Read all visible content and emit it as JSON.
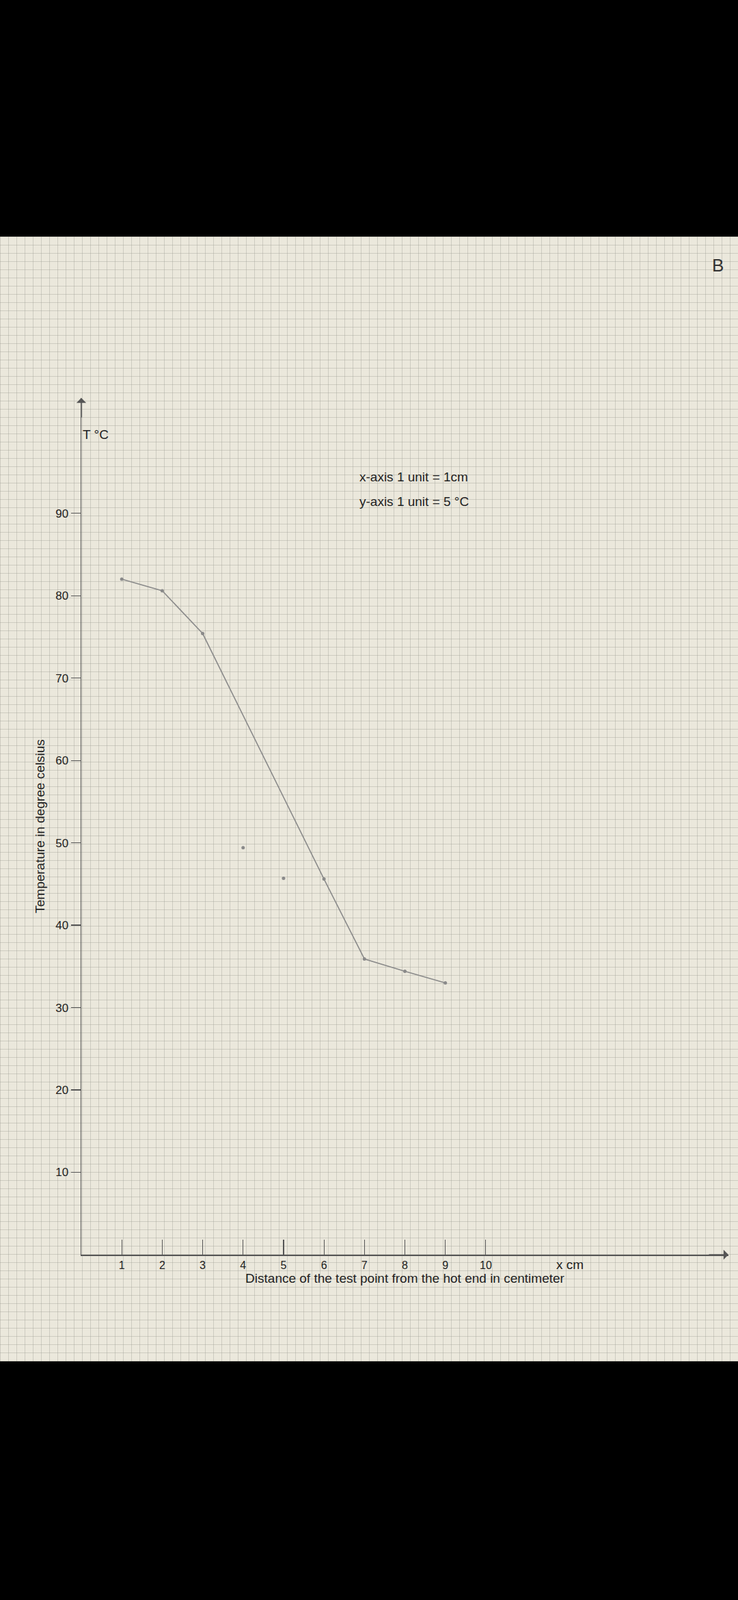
{
  "chart_data": {
    "type": "line",
    "x_label": "Distance of the test point from the hot end in centimeter",
    "y_label": "Temperature in degree celsius",
    "annotations": [
      "T °C",
      "x-axis 1 unit = 1cm",
      "y-axis 1 unit = 5 °C",
      "x cm",
      "B"
    ],
    "series": [
      {
        "type": "scatter",
        "marker": "circle",
        "color": "#8a8a8a",
        "x": [
          1,
          2,
          3,
          4,
          5,
          6,
          7,
          8,
          9
        ],
        "values": [
          82,
          80.6,
          75.4,
          49.4,
          45.7,
          45.6,
          35.9,
          34.4,
          33
        ]
      },
      {
        "type": "line",
        "line_style": "solid",
        "color": "#8a8a8a",
        "x": [
          1,
          2,
          3,
          6,
          7,
          8,
          9
        ],
        "values": [
          82,
          80.6,
          75.4,
          45.6,
          35.9,
          34.4,
          33
        ]
      }
    ],
    "xlim": [
      0,
      16
    ],
    "ylim": [
      0,
      104
    ],
    "xticks": [
      1,
      2,
      3,
      4,
      5,
      6,
      7,
      8,
      9,
      10
    ],
    "yticks": [
      10,
      20,
      30,
      40,
      50,
      60,
      70,
      80,
      90
    ],
    "grid": false
  }
}
